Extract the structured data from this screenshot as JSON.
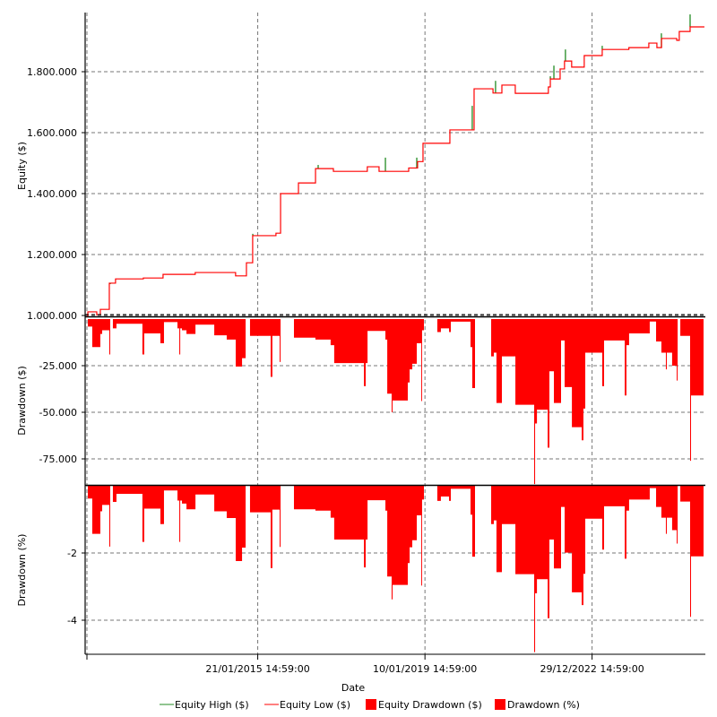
{
  "chart_data": [
    {
      "type": "line",
      "ylabel": "Equity ($)",
      "ylim": [
        1000000,
        1995000
      ],
      "yticks": [
        {
          "value": 1000000,
          "label": "1.000.000"
        },
        {
          "value": 1200000,
          "label": "1.200.000"
        },
        {
          "value": 1400000,
          "label": "1.400.000"
        },
        {
          "value": 1600000,
          "label": "1.600.000"
        },
        {
          "value": 1800000,
          "label": "1.800.000"
        }
      ],
      "grid": true,
      "series": [
        {
          "name": "Equity Low ($)",
          "color": "#ff0000",
          "step": true,
          "points": [
            [
              "2011-01-01",
              1000000
            ],
            [
              "2011-01-09",
              1012000
            ],
            [
              "2011-03-27",
              1003000
            ],
            [
              "2011-04-27",
              1020000
            ],
            [
              "2011-07-14",
              1106000
            ],
            [
              "2011-09-06",
              1120000
            ],
            [
              "2012-05-04",
              1123000
            ],
            [
              "2012-10-22",
              1135000
            ],
            [
              "2013-07-28",
              1141000
            ],
            [
              "2014-07-13",
              1130000
            ],
            [
              "2014-10-15",
              1173000
            ],
            [
              "2014-12-08",
              1262000
            ],
            [
              "2015-06-28",
              1270000
            ],
            [
              "2015-08-07",
              1400000
            ],
            [
              "2016-01-09",
              1435000
            ],
            [
              "2016-06-05",
              1482000
            ],
            [
              "2016-11-07",
              1473000
            ],
            [
              "2017-08-28",
              1488000
            ],
            [
              "2017-12-08",
              1473000
            ],
            [
              "2018-08-22",
              1484000
            ],
            [
              "2018-11-07",
              1505000
            ],
            [
              "2018-12-24",
              1565000
            ],
            [
              "2019-08-14",
              1609000
            ],
            [
              "2020-03-11",
              1744000
            ],
            [
              "2020-08-22",
              1730000
            ],
            [
              "2020-11-07",
              1756000
            ],
            [
              "2021-03-03",
              1729000
            ],
            [
              "2021-12-15",
              1750000
            ],
            [
              "2022-01-01",
              1776000
            ],
            [
              "2022-03-27",
              1809000
            ],
            [
              "2022-05-04",
              1835000
            ],
            [
              "2022-07-05",
              1815000
            ],
            [
              "2022-10-22",
              1853000
            ],
            [
              "2023-03-27",
              1873000
            ],
            [
              "2023-11-13",
              1879000
            ],
            [
              "2024-05-04",
              1894000
            ],
            [
              "2024-07-13",
              1879000
            ],
            [
              "2024-08-22",
              1909000
            ],
            [
              "2025-01-01",
              1903000
            ],
            [
              "2025-01-23",
              1932000
            ],
            [
              "2025-04-27",
              1947000
            ],
            [
              "2025-08-29",
              1947000
            ]
          ]
        },
        {
          "name": "Equity High ($)",
          "color": "#228b22",
          "spikes": [
            [
              "2011-07-22",
              1103000
            ],
            [
              "2014-12-09",
              1268000
            ],
            [
              "2016-06-28",
              1494000
            ],
            [
              "2018-02-01",
              1518000
            ],
            [
              "2018-10-31",
              1518000
            ],
            [
              "2020-02-24",
              1688000
            ],
            [
              "2020-09-13",
              1770000
            ],
            [
              "2022-01-01",
              1785000
            ],
            [
              "2022-02-01",
              1820000
            ],
            [
              "2022-05-12",
              1873000
            ],
            [
              "2023-03-27",
              1885000
            ],
            [
              "2024-08-21",
              1926000
            ],
            [
              "2025-04-27",
              1988000
            ]
          ]
        }
      ]
    },
    {
      "type": "area",
      "ylabel": "Drawdown ($)",
      "ylim": [
        -90000,
        0
      ],
      "yticks": [
        {
          "value": -25000,
          "label": "-25.000"
        },
        {
          "value": -50000,
          "label": "-50.000"
        },
        {
          "value": -75000,
          "label": "-75.000"
        }
      ],
      "grid": true,
      "series": [
        {
          "name": "Equity Drawdown ($)",
          "color": "#ff0000",
          "step": true
        }
      ]
    },
    {
      "type": "area",
      "ylabel": "Drawdown (%)",
      "ylim": [
        -5,
        0
      ],
      "yticks": [
        {
          "value": -2,
          "label": "-2"
        },
        {
          "value": -4,
          "label": "-4"
        }
      ],
      "grid": true,
      "series": [
        {
          "name": "Drawdown (%)",
          "color": "#ff0000",
          "step": true
        }
      ]
    }
  ],
  "drawdown_series": {
    "dates": [
      "2011-01-01",
      "2011-01-09",
      "2011-02-16",
      "2011-04-27",
      "2011-05-13",
      "2011-07-14",
      "2011-07-22",
      "2011-08-14",
      "2011-09-14",
      "2012-04-26",
      "2012-05-12",
      "2012-09-29",
      "2012-10-30",
      "2013-02-24",
      "2013-03-12",
      "2013-03-20",
      "2013-04-04",
      "2013-05-13",
      "2013-07-30",
      "2014-01-09",
      "2014-04-27",
      "2014-07-14",
      "2014-09-07",
      "2014-10-08",
      "2014-11-15",
      "2015-05-13",
      "2015-05-28",
      "2015-07-30",
      "2015-08-07",
      "2015-12-01",
      "2016-06-04",
      "2016-10-14",
      "2016-11-14",
      "2017-07-30",
      "2017-08-14",
      "2017-08-30",
      "2018-02-01",
      "2018-02-17",
      "2018-03-27",
      "2018-04-04",
      "2018-08-14",
      "2018-08-30",
      "2018-09-22",
      "2018-10-31",
      "2018-12-09",
      "2018-12-16",
      "2019-01-01",
      "2019-04-27",
      "2019-05-28",
      "2019-08-07",
      "2019-08-22",
      "2020-02-09",
      "2020-02-24",
      "2020-03-19",
      "2020-08-06",
      "2020-08-29",
      "2020-09-21",
      "2020-11-07",
      "2021-03-04",
      "2021-08-14",
      "2021-08-22",
      "2021-09-07",
      "2021-12-09",
      "2021-12-24",
      "2022-02-01",
      "2022-04-04",
      "2022-05-05",
      "2022-07-07",
      "2022-09-30",
      "2022-10-15",
      "2022-10-31",
      "2023-03-27",
      "2023-04-12",
      "2023-10-08",
      "2023-10-23",
      "2023-11-15",
      "2024-05-12",
      "2024-07-06",
      "2024-08-21",
      "2024-09-29",
      "2024-10-07",
      "2024-11-22",
      "2025-01-01",
      "2025-01-09",
      "2025-02-01",
      "2025-04-27",
      "2025-05-05",
      "2025-08-22"
    ],
    "equity_drawdown": [
      0,
      -4000,
      -15000,
      -8000,
      -6000,
      -19000,
      0,
      -5000,
      -2500,
      -19000,
      -7700,
      -13000,
      -1600,
      -5000,
      -19000,
      -5000,
      -6000,
      -8000,
      -3000,
      -8700,
      -11000,
      -25500,
      -21000,
      0,
      -9000,
      -31000,
      -9000,
      -23000,
      0,
      -10000,
      -11000,
      -14000,
      -23600,
      -36000,
      -23600,
      -6400,
      -11000,
      -40000,
      -50000,
      -43700,
      -34000,
      -27000,
      -24000,
      -13000,
      -44000,
      -6000,
      0,
      -7000,
      -5000,
      -7000,
      -1400,
      -15000,
      -37000,
      0,
      -20000,
      -18000,
      -45000,
      -20000,
      -46000,
      -88500,
      -56000,
      -48600,
      -69000,
      -28000,
      -45000,
      -11500,
      -36500,
      -58000,
      -65000,
      -48000,
      -18000,
      -36000,
      -11500,
      -41000,
      -14000,
      -7700,
      -1300,
      -12000,
      -18000,
      -27000,
      -18000,
      -25000,
      -33000,
      0,
      -9000,
      -76000,
      -41000,
      -41000
    ],
    "drawdown_pct": [
      0,
      -0.38,
      -1.43,
      -0.76,
      -0.57,
      -1.81,
      0,
      -0.48,
      -0.24,
      -1.67,
      -0.68,
      -1.14,
      -0.14,
      -0.44,
      -1.67,
      -0.44,
      -0.53,
      -0.7,
      -0.26,
      -0.76,
      -0.96,
      -2.24,
      -1.84,
      0,
      -0.79,
      -2.45,
      -0.71,
      -1.82,
      0,
      -0.7,
      -0.74,
      -0.95,
      -1.6,
      -2.43,
      -1.6,
      -0.43,
      -0.74,
      -2.7,
      -3.38,
      -2.95,
      -2.3,
      -1.83,
      -1.62,
      -0.88,
      -2.97,
      -0.41,
      0,
      -0.45,
      -0.32,
      -0.45,
      -0.09,
      -0.86,
      -2.11,
      0,
      -1.14,
      -1.03,
      -2.57,
      -1.14,
      -2.63,
      -4.95,
      -3.2,
      -2.78,
      -3.94,
      -1.6,
      -2.46,
      -0.63,
      -1.99,
      -3.17,
      -3.55,
      -2.62,
      -0.98,
      -1.9,
      -0.61,
      -2.17,
      -0.74,
      -0.41,
      -0.07,
      -0.63,
      -0.95,
      -1.43,
      -0.95,
      -1.32,
      -1.72,
      0,
      -0.47,
      -3.9,
      -2.1,
      -2.1
    ]
  },
  "xaxis": {
    "label": "Date",
    "xlim": [
      "2010-12-20",
      "2025-08-29"
    ],
    "ticks": [
      {
        "date": "2011-01-01",
        "label": ""
      },
      {
        "date": "2015-01-21",
        "label": "21/01/2015 14:59:00"
      },
      {
        "date": "2019-01-10",
        "label": "10/01/2019 14:59:00"
      },
      {
        "date": "2022-12-29",
        "label": "29/12/2022 14:59:00"
      }
    ]
  },
  "legend": {
    "placement": "bottom",
    "items": [
      {
        "label": "Equity High ($)",
        "kind": "line",
        "color": "#228b22"
      },
      {
        "label": "Equity Low ($)",
        "kind": "line",
        "color": "#ff0000"
      },
      {
        "label": "Equity Drawdown ($)",
        "kind": "box",
        "color": "#ff0000"
      },
      {
        "label": "Drawdown (%)",
        "kind": "box",
        "color": "#ff0000"
      }
    ]
  }
}
